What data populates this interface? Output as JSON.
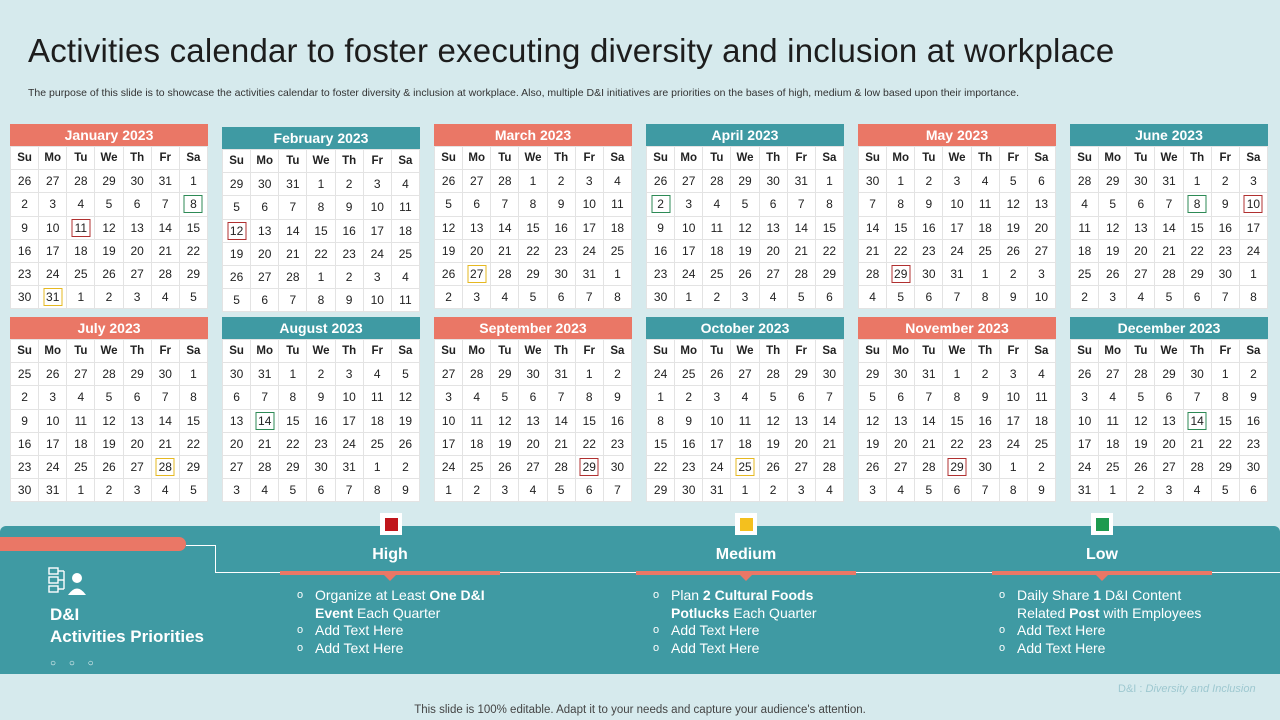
{
  "title": "Activities calendar to foster executing diversity and inclusion at workplace",
  "subtitle": "The purpose of this slide is to showcase the activities calendar to foster diversity & inclusion at workplace. Also, multiple D&I initiatives are priorities on the bases of high, medium & low based upon their importance.",
  "weekdays": [
    "Su",
    "Mo",
    "Tu",
    "We",
    "Th",
    "Fr",
    "Sa"
  ],
  "colors": {
    "red": "#ea7766",
    "teal": "#3f9aa3",
    "high": "#c0151b",
    "medium": "#f4c01e",
    "low": "#1d9a4e"
  },
  "months": [
    {
      "name": "January 2023",
      "color": "red",
      "days": [
        26,
        27,
        28,
        29,
        30,
        31,
        1,
        2,
        3,
        4,
        5,
        6,
        7,
        8,
        9,
        10,
        11,
        12,
        13,
        14,
        15,
        16,
        17,
        18,
        19,
        20,
        21,
        22,
        23,
        24,
        25,
        26,
        27,
        28,
        29,
        30,
        31,
        1,
        2,
        3,
        4,
        5
      ],
      "marks": [
        {
          "index": 13,
          "priority": "high"
        },
        {
          "index": 11,
          "priority": "high"
        }
      ]
    },
    {
      "name": "February 2023",
      "color": "teal",
      "days": [
        29,
        30,
        31,
        1,
        2,
        3,
        4,
        5,
        6,
        7,
        8,
        9,
        10,
        11,
        12,
        13,
        14,
        15,
        16,
        17,
        18,
        19,
        20,
        21,
        22,
        23,
        24,
        25,
        26,
        27,
        28,
        1,
        2,
        3,
        4,
        5,
        6,
        7,
        8,
        9,
        10,
        11
      ],
      "marks": []
    },
    {
      "name": "March 2023",
      "color": "red",
      "days": [
        26,
        27,
        28,
        1,
        2,
        3,
        4,
        5,
        6,
        7,
        8,
        9,
        10,
        11,
        12,
        13,
        14,
        15,
        16,
        17,
        18,
        19,
        20,
        21,
        22,
        23,
        24,
        25,
        26,
        27,
        28,
        29,
        30,
        31,
        1,
        2,
        3,
        4,
        5,
        6,
        7,
        8
      ],
      "marks": []
    },
    {
      "name": "April 2023",
      "color": "teal",
      "days": [
        26,
        27,
        28,
        29,
        30,
        31,
        1,
        2,
        3,
        4,
        5,
        6,
        7,
        8,
        9,
        10,
        11,
        12,
        13,
        14,
        15,
        16,
        17,
        18,
        19,
        20,
        21,
        22,
        23,
        24,
        25,
        26,
        27,
        28,
        29,
        30,
        1,
        2,
        3,
        4,
        5,
        6
      ],
      "marks": []
    },
    {
      "name": "May 2023",
      "color": "red",
      "days": [
        30,
        1,
        2,
        3,
        4,
        5,
        6,
        7,
        8,
        9,
        10,
        11,
        12,
        13,
        14,
        15,
        16,
        17,
        18,
        19,
        20,
        21,
        22,
        23,
        24,
        25,
        26,
        27,
        28,
        29,
        30,
        31,
        1,
        2,
        3,
        4,
        5,
        6,
        7,
        8,
        9,
        10
      ],
      "marks": []
    },
    {
      "name": "June 2023",
      "color": "teal",
      "days": [
        28,
        29,
        30,
        31,
        1,
        2,
        3,
        4,
        5,
        6,
        7,
        8,
        9,
        10,
        11,
        12,
        13,
        14,
        15,
        16,
        17,
        18,
        19,
        20,
        21,
        22,
        23,
        24,
        25,
        26,
        27,
        28,
        29,
        30,
        1,
        2,
        3,
        4,
        5,
        6,
        7,
        8
      ],
      "marks": []
    },
    {
      "name": "July 2023",
      "color": "red",
      "days": [
        25,
        26,
        27,
        28,
        29,
        30,
        1,
        2,
        3,
        4,
        5,
        6,
        7,
        8,
        9,
        10,
        11,
        12,
        13,
        14,
        15,
        16,
        17,
        18,
        19,
        20,
        21,
        22,
        23,
        24,
        25,
        26,
        27,
        28,
        29,
        30,
        31,
        1,
        2,
        3,
        4,
        5
      ],
      "marks": []
    },
    {
      "name": "August 2023",
      "color": "teal",
      "days": [
        30,
        31,
        1,
        2,
        3,
        4,
        5,
        6,
        7,
        8,
        9,
        10,
        11,
        12,
        13,
        14,
        15,
        16,
        17,
        18,
        19,
        20,
        21,
        22,
        23,
        24,
        25,
        26,
        27,
        28,
        29,
        30,
        31,
        1,
        2,
        3,
        4,
        5,
        6,
        7,
        8,
        9
      ],
      "marks": []
    },
    {
      "name": "September 2023",
      "color": "red",
      "days": [
        27,
        28,
        29,
        30,
        31,
        1,
        2,
        3,
        4,
        5,
        6,
        7,
        8,
        9,
        10,
        11,
        12,
        13,
        14,
        15,
        16,
        17,
        18,
        19,
        20,
        21,
        22,
        23,
        24,
        25,
        26,
        27,
        28,
        29,
        30,
        1,
        2,
        3,
        4,
        5,
        6,
        7
      ],
      "marks": []
    },
    {
      "name": "October 2023",
      "color": "teal",
      "days": [
        24,
        25,
        26,
        27,
        28,
        29,
        30,
        1,
        2,
        3,
        4,
        5,
        6,
        7,
        8,
        9,
        10,
        11,
        12,
        13,
        14,
        15,
        16,
        17,
        18,
        19,
        20,
        21,
        22,
        23,
        24,
        25,
        26,
        27,
        28,
        29,
        30,
        31,
        1,
        2,
        3,
        4
      ],
      "marks": []
    },
    {
      "name": "November 2023",
      "color": "red",
      "days": [
        29,
        30,
        31,
        1,
        2,
        3,
        4,
        5,
        6,
        7,
        8,
        9,
        10,
        11,
        12,
        13,
        14,
        15,
        16,
        17,
        18,
        19,
        20,
        21,
        22,
        23,
        24,
        25,
        26,
        27,
        28,
        29,
        30,
        1,
        2,
        3,
        4,
        5,
        6,
        7,
        8,
        9
      ],
      "marks": []
    },
    {
      "name": "December 2023",
      "color": "teal",
      "days": [
        26,
        27,
        28,
        29,
        30,
        1,
        2,
        3,
        4,
        5,
        6,
        7,
        8,
        9,
        10,
        11,
        12,
        13,
        14,
        15,
        16,
        17,
        18,
        19,
        20,
        21,
        22,
        23,
        24,
        25,
        26,
        27,
        28,
        29,
        30,
        31,
        1,
        2,
        3,
        4,
        5,
        6
      ],
      "marks": []
    }
  ],
  "panel": {
    "title_line1": "D&I",
    "title_line2": "Activities Priorities",
    "dots": "○ ○ ○",
    "columns": [
      {
        "label": "High",
        "priority": "high",
        "items": [
          "Organize at Least One D&I Event Each Quarter",
          "Add Text Here",
          "Add Text Here"
        ]
      },
      {
        "label": "Medium",
        "priority": "medium",
        "items": [
          "Plan 2 Cultural Foods Potlucks Each Quarter",
          "Add Text Here",
          "Add Text Here"
        ]
      },
      {
        "label": "Low",
        "priority": "low",
        "items": [
          "Daily Share 1 D&I Content Related Post with Employees",
          "Add Text Here",
          "Add Text Here"
        ]
      }
    ]
  },
  "footnote_abbr": "D&I : ",
  "footnote_full": "Diversity and Inclusion",
  "bottom_note": "This slide is 100% editable. Adapt it to your needs and capture your audience's attention."
}
